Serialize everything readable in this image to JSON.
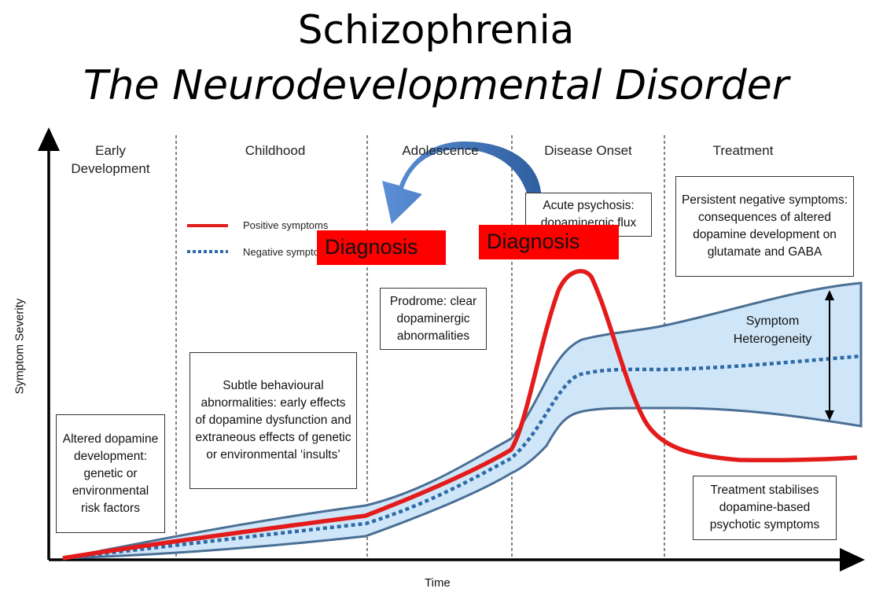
{
  "title": "Schizophrenia",
  "subtitle": "The Neurodevelopmental Disorder",
  "phases": [
    "Early Development",
    "Childhood",
    "Adolescence",
    "Disease Onset",
    "Treatment"
  ],
  "legend": {
    "positive": "Positive symptoms",
    "negative": "Negative symptoms"
  },
  "boxes": {
    "altered": "Altered dopamine development: genetic or environmental risk factors",
    "subtle": "Subtle behavioural abnormalities: early effects of dopamine dysfunction and extraneous effects of genetic or environmental ‘insults’",
    "prodrome": "Prodrome: clear dopaminergic abnormalities",
    "acute": "Acute psychosis: dopaminergic flux",
    "persistent": "Persistent negative symptoms: consequences of altered dopamine development on glutamate and GABA",
    "treatment": "Treatment stabilises dopamine-based psychotic symptoms"
  },
  "heterogeneity": "Symptom Heterogeneity",
  "diagnosis": [
    "Diagnosis",
    "Diagnosis"
  ],
  "axes": {
    "x": "Time",
    "y": "Symptom Severity"
  },
  "colors": {
    "positive": "#e31b1b",
    "negative": "#2e6aa8",
    "band_fill": "#cfe6f8",
    "band_stroke": "#4a6f95",
    "diagnosis_bg": "#ff0000",
    "arrow": "#3f6fbf"
  }
}
